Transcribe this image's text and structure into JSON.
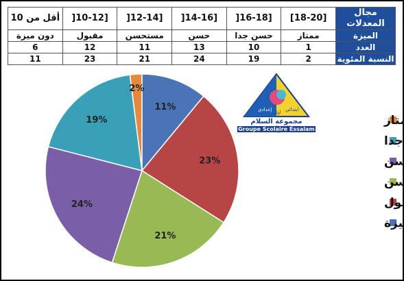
{
  "table": {
    "headers": [
      "مجال المعدلات",
      "الميزة",
      "العدد",
      "النسبة المئوية"
    ],
    "ranges": [
      "[18-20]",
      "[16-18[",
      "[14-16[",
      "[12-14[",
      "[10-12[",
      "أقل من 10"
    ],
    "grades": [
      "ممتاز",
      "حسن جدا",
      "حسن",
      "مستحسن",
      "مقبول",
      "دون ميزة"
    ],
    "counts": [
      "1",
      "10",
      "13",
      "11",
      "12",
      "6"
    ],
    "percents": [
      "2",
      "19",
      "24",
      "21",
      "23",
      "11"
    ]
  },
  "logo": {
    "name": "مجموعة السلام الدراسية",
    "latin": "Groupe Scolaire Essalam",
    "left_word": "إعدادي",
    "right_word": "ابتدائي",
    "top_word": "أولي"
  },
  "chart_data": {
    "type": "pie",
    "categories": [
      "ممتاز",
      "حسن جدا",
      "حسن",
      "مستحسن",
      "مقبول",
      "دون ميزة"
    ],
    "values": [
      2,
      19,
      24,
      21,
      23,
      11
    ],
    "labels": [
      "2%",
      "19%",
      "24%",
      "21%",
      "23%",
      "11%"
    ],
    "colors": [
      "#e5893a",
      "#3aa0b8",
      "#7b5ea8",
      "#98b954",
      "#b84545",
      "#4a74b5"
    ],
    "legend_order": [
      "ممتاز",
      "حسن جدا",
      "حسن",
      "مستحسن",
      "مقبول",
      "دون ميزة"
    ],
    "legend_colors": [
      "#e5893a",
      "#3aa0b8",
      "#7b5ea8",
      "#98b954",
      "#b84545",
      "#4a74b5"
    ],
    "draw_order": [
      0,
      5,
      4,
      3,
      2,
      1
    ],
    "legend_position": "right"
  }
}
